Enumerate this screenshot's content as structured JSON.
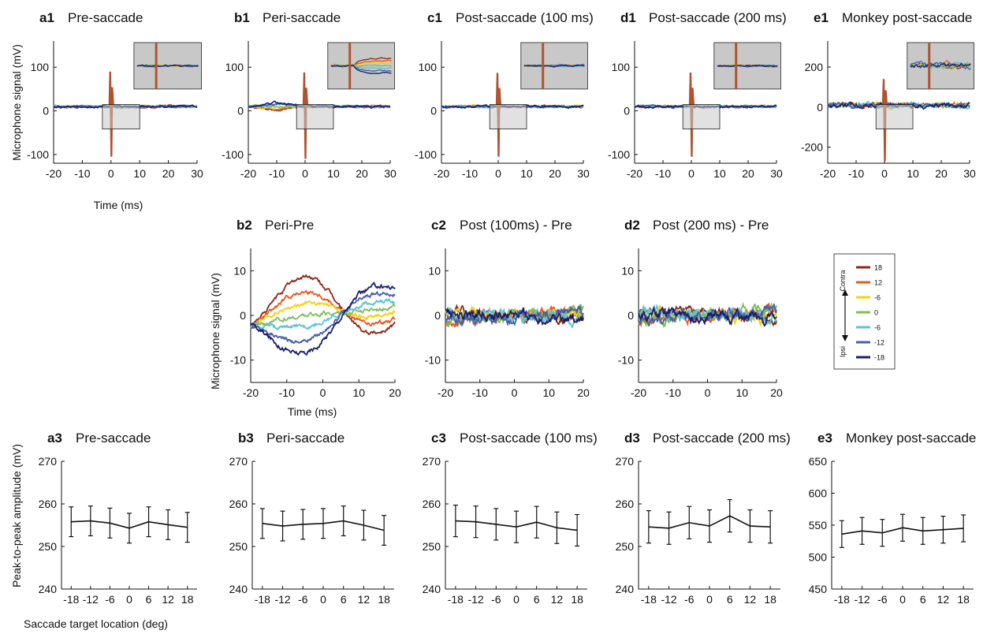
{
  "colors": {
    "18": "#8B2A1A",
    "12": "#E85A1E",
    "-6c": "#F2D21A",
    "0": "#7DBF5A",
    "-6i": "#5FC2D8",
    "-12": "#4A5FA8",
    "-18": "#1B1F6B",
    "axis": "#111111",
    "inset_fill": "#C8C8C8"
  },
  "legend": {
    "contra": "Contra",
    "ipsi": "Ipsi",
    "labels": [
      "18",
      "12",
      "-6",
      "0",
      "-6",
      "-12",
      "-18"
    ]
  },
  "labels": {
    "row1_ylabel": "Microphone signal (mV)",
    "row1_xlabel": "Time (ms)",
    "row2_ylabel": "Microphone signal (mV)",
    "row2_xlabel": "Time (ms)",
    "row3_ylabel": "Peak-to-peak amplitude (mV)",
    "row3_xlabel": "Saccade target location (deg)"
  },
  "chart_data": [
    {
      "id": "a1",
      "type": "line",
      "letter": "a1",
      "title": "Pre-saccade",
      "x_range": [
        -20,
        30
      ],
      "xticks": [
        -20,
        -10,
        0,
        10,
        20,
        30
      ],
      "ylim": [
        -120,
        160
      ],
      "yticks": [
        -100,
        0,
        100
      ],
      "baseline": 10,
      "spike": [
        90,
        -105
      ],
      "inset": "low"
    },
    {
      "id": "b1",
      "type": "line",
      "letter": "b1",
      "title": "Peri-saccade",
      "x_range": [
        -20,
        30
      ],
      "xticks": [
        -20,
        -10,
        0,
        10,
        20,
        30
      ],
      "ylim": [
        -120,
        160
      ],
      "yticks": [
        -100,
        0,
        100
      ],
      "baseline": 10,
      "spike": [
        88,
        -110
      ],
      "inset": "spread"
    },
    {
      "id": "c1",
      "type": "line",
      "letter": "c1",
      "title": "Post-saccade (100 ms)",
      "x_range": [
        -20,
        30
      ],
      "xticks": [
        -20,
        -10,
        0,
        10,
        20,
        30
      ],
      "ylim": [
        -120,
        160
      ],
      "yticks": [
        -100,
        0,
        100
      ],
      "baseline": 10,
      "spike": [
        87,
        -105
      ],
      "inset": "low"
    },
    {
      "id": "d1",
      "type": "line",
      "letter": "d1",
      "title": "Post-saccade (200 ms)",
      "x_range": [
        -20,
        30
      ],
      "xticks": [
        -20,
        -10,
        0,
        10,
        20,
        30
      ],
      "ylim": [
        -120,
        160
      ],
      "yticks": [
        -100,
        0,
        100
      ],
      "baseline": 10,
      "spike": [
        88,
        -105
      ],
      "inset": "low"
    },
    {
      "id": "e1",
      "type": "line",
      "letter": "e1",
      "title": "Monkey post-saccade",
      "x_range": [
        -20,
        30
      ],
      "xticks": [
        -20,
        -10,
        0,
        10,
        20,
        30
      ],
      "ylim": [
        -280,
        330
      ],
      "yticks": [
        -200,
        0,
        200
      ],
      "baseline": 10,
      "spike": [
        140,
        -270
      ],
      "inset": "noisy"
    },
    {
      "id": "b2",
      "type": "line",
      "letter": "b2",
      "title": "Peri-Pre",
      "x_range": [
        -20,
        20
      ],
      "xticks": [
        -20,
        -10,
        0,
        10,
        20
      ],
      "ylim": [
        -15,
        15
      ],
      "yticks": [
        -10,
        0,
        10
      ],
      "series": [
        {
          "key": "18",
          "amp": 10,
          "noise": 0.6
        },
        {
          "key": "12",
          "amp": 6.5,
          "noise": 0.6
        },
        {
          "key": "-6c",
          "amp": 3.5,
          "noise": 0.6
        },
        {
          "key": "0",
          "amp": 0.5,
          "noise": 0.6
        },
        {
          "key": "-6i",
          "amp": -2,
          "noise": 0.6
        },
        {
          "key": "-12",
          "amp": -5.5,
          "noise": 0.6
        },
        {
          "key": "-18",
          "amp": -8.5,
          "noise": 0.7
        }
      ]
    },
    {
      "id": "c2",
      "type": "line",
      "letter": "c2",
      "title": "Post (100ms) - Pre",
      "x_range": [
        -20,
        20
      ],
      "xticks": [
        -20,
        -10,
        0,
        10,
        20
      ],
      "ylim": [
        -15,
        15
      ],
      "yticks": [
        -10,
        0,
        10
      ],
      "noisy": 1.5
    },
    {
      "id": "d2",
      "type": "line",
      "letter": "d2",
      "title": "Post (200 ms) - Pre",
      "x_range": [
        -20,
        20
      ],
      "xticks": [
        -20,
        -10,
        0,
        10,
        20
      ],
      "ylim": [
        -15,
        15
      ],
      "yticks": [
        -10,
        0,
        10
      ],
      "noisy": 1.5
    },
    {
      "id": "a3",
      "type": "line",
      "letter": "a3",
      "title": "Pre-saccade",
      "categories": [
        "-18",
        "-12",
        "-6",
        "0",
        "6",
        "12",
        "18"
      ],
      "ylim": [
        240,
        270
      ],
      "yticks": [
        240,
        250,
        260,
        270
      ],
      "values": [
        255.8,
        256.0,
        255.5,
        254.3,
        255.8,
        255.1,
        254.5
      ],
      "errors": [
        3.5,
        3.5,
        3.5,
        3.5,
        3.5,
        3.5,
        3.5
      ]
    },
    {
      "id": "b3",
      "type": "line",
      "letter": "b3",
      "title": "Peri-saccade",
      "categories": [
        "-18",
        "-12",
        "-6",
        "0",
        "6",
        "12",
        "18"
      ],
      "ylim": [
        240,
        270
      ],
      "yticks": [
        240,
        250,
        260,
        270
      ],
      "values": [
        255.4,
        254.8,
        255.2,
        255.4,
        256.0,
        255.0,
        253.8
      ],
      "errors": [
        3.5,
        3.5,
        3.5,
        3.5,
        3.5,
        3.5,
        3.5
      ]
    },
    {
      "id": "c3",
      "type": "line",
      "letter": "c3",
      "title": "Post-saccade (100 ms)",
      "categories": [
        "-18",
        "-12",
        "-6",
        "0",
        "6",
        "12",
        "18"
      ],
      "ylim": [
        240,
        270
      ],
      "yticks": [
        240,
        250,
        260,
        270
      ],
      "values": [
        256.0,
        255.8,
        255.2,
        254.6,
        255.7,
        254.4,
        253.8
      ],
      "errors": [
        3.7,
        3.7,
        3.7,
        3.7,
        3.7,
        3.7,
        3.7
      ]
    },
    {
      "id": "d3",
      "type": "line",
      "letter": "d3",
      "title": "Post-saccade (200 ms)",
      "categories": [
        "-18",
        "-12",
        "-6",
        "0",
        "6",
        "12",
        "18"
      ],
      "ylim": [
        240,
        270
      ],
      "yticks": [
        240,
        250,
        260,
        270
      ],
      "values": [
        254.6,
        254.3,
        255.6,
        254.8,
        257.2,
        254.8,
        254.6
      ],
      "errors": [
        3.8,
        3.8,
        3.8,
        3.8,
        3.8,
        3.8,
        3.8
      ]
    },
    {
      "id": "e3",
      "type": "line",
      "letter": "e3",
      "title": "Monkey post-saccade",
      "categories": [
        "-18",
        "-12",
        "-6",
        "0",
        "6",
        "12",
        "18"
      ],
      "ylim": [
        450,
        650
      ],
      "yticks": [
        450,
        500,
        550,
        600,
        650
      ],
      "values": [
        536,
        541,
        538,
        546,
        541,
        543,
        545
      ],
      "errors": [
        21,
        21,
        21,
        21,
        21,
        21,
        21
      ]
    }
  ]
}
